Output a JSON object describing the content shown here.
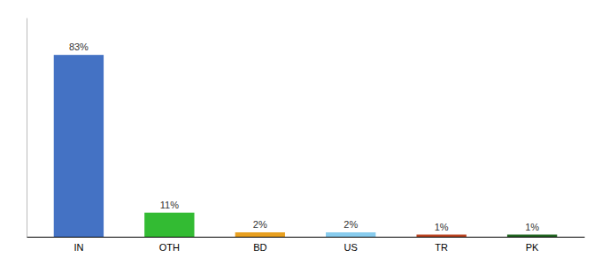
{
  "chart_data": {
    "type": "bar",
    "categories": [
      "IN",
      "OTH",
      "BD",
      "US",
      "TR",
      "PK"
    ],
    "values": [
      83,
      11,
      2,
      2,
      1,
      1
    ],
    "value_labels": [
      "83%",
      "11%",
      "2%",
      "2%",
      "1%",
      "1%"
    ],
    "colors": [
      "#4472C4",
      "#33BB33",
      "#E8A020",
      "#88CCEE",
      "#BB4422",
      "#226622"
    ],
    "ylim": [
      0,
      100
    ],
    "grid": false,
    "data_labels": true,
    "tick_labels": "x"
  }
}
